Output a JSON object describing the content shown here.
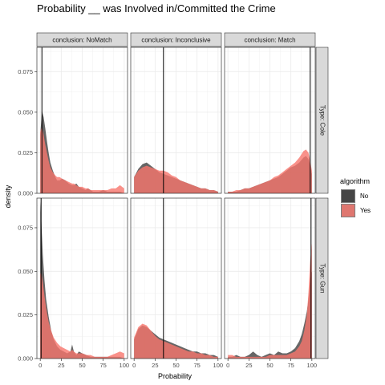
{
  "chart_data": {
    "type": "area",
    "title": "Probability __ was Involved in/Committed the Crime",
    "xlabel": "Probability",
    "ylabel": "density",
    "columns": [
      "conclusion: NoMatch",
      "conclusion: Inconclusive",
      "conclusion: Match"
    ],
    "rows": [
      {
        "label": "Type: Cole",
        "ylim": [
          0,
          0.09
        ],
        "yticks": [
          "0.000",
          "0.025",
          "0.050",
          "0.075"
        ],
        "ytick_values": [
          0,
          0.025,
          0.05,
          0.075
        ]
      },
      {
        "label": "Type: Gun",
        "ylim": [
          0,
          0.092
        ],
        "yticks": [
          "0.000",
          "0.025",
          "0.050",
          "0.075"
        ],
        "ytick_values": [
          0,
          0.025,
          0.05,
          0.075
        ]
      }
    ],
    "xlim": [
      -4,
      104
    ],
    "xticks": [
      "0",
      "25",
      "50",
      "75",
      "100"
    ],
    "xtick_values": [
      0,
      25,
      50,
      75,
      100
    ],
    "grid": true,
    "legend_position": "right",
    "legend": {
      "title": "algorithm",
      "entries": [
        {
          "label": "No",
          "color": "#333333",
          "opacity": 0.75
        },
        {
          "label": "Yes",
          "color": "#F8766D",
          "opacity": 0.8
        }
      ]
    },
    "panels": [
      {
        "row": 0,
        "col": 0,
        "vline": 2,
        "series": {
          "No": {
            "x": [
              0,
              2,
              4,
              6,
              8,
              10,
              12,
              15,
              18,
              20,
              23,
              26,
              30,
              34,
              38,
              40,
              43,
              46,
              50,
              54,
              57,
              60,
              63,
              66,
              70,
              75,
              80,
              85,
              90,
              95,
              100
            ],
            "y": [
              0.036,
              0.051,
              0.047,
              0.04,
              0.032,
              0.025,
              0.019,
              0.014,
              0.01,
              0.008,
              0.008,
              0.009,
              0.008,
              0.006,
              0.005,
              0.005,
              0.006,
              0.004,
              0.003,
              0.002,
              0.003,
              0.002,
              0.001,
              0.001,
              0.001,
              0.002,
              0.001,
              0.001,
              0.001,
              0.001,
              0.0
            ]
          },
          "Yes": {
            "x": [
              0,
              2,
              4,
              6,
              8,
              10,
              12,
              15,
              18,
              20,
              23,
              26,
              30,
              34,
              38,
              40,
              43,
              46,
              50,
              54,
              57,
              60,
              63,
              66,
              70,
              75,
              80,
              85,
              90,
              95,
              100
            ],
            "y": [
              0.038,
              0.041,
              0.036,
              0.03,
              0.025,
              0.02,
              0.016,
              0.013,
              0.011,
              0.01,
              0.01,
              0.009,
              0.008,
              0.007,
              0.006,
              0.006,
              0.005,
              0.004,
              0.004,
              0.003,
              0.003,
              0.002,
              0.002,
              0.002,
              0.002,
              0.002,
              0.002,
              0.003,
              0.003,
              0.005,
              0.003
            ]
          }
        }
      },
      {
        "row": 0,
        "col": 1,
        "vline": 35,
        "series": {
          "No": {
            "x": [
              0,
              5,
              10,
              15,
              20,
              25,
              30,
              35,
              40,
              45,
              50,
              55,
              60,
              65,
              70,
              75,
              80,
              85,
              90,
              95,
              100
            ],
            "y": [
              0.01,
              0.015,
              0.018,
              0.019,
              0.017,
              0.015,
              0.013,
              0.012,
              0.011,
              0.01,
              0.009,
              0.008,
              0.007,
              0.006,
              0.005,
              0.004,
              0.003,
              0.003,
              0.002,
              0.002,
              0.001
            ]
          },
          "Yes": {
            "x": [
              0,
              5,
              10,
              15,
              20,
              25,
              30,
              35,
              40,
              45,
              50,
              55,
              60,
              65,
              70,
              75,
              80,
              85,
              90,
              95,
              100
            ],
            "y": [
              0.01,
              0.014,
              0.016,
              0.017,
              0.016,
              0.015,
              0.014,
              0.014,
              0.013,
              0.011,
              0.01,
              0.008,
              0.007,
              0.006,
              0.005,
              0.004,
              0.003,
              0.003,
              0.002,
              0.002,
              0.001
            ]
          }
        }
      },
      {
        "row": 0,
        "col": 2,
        "vline": 98,
        "series": {
          "No": {
            "x": [
              0,
              5,
              10,
              15,
              20,
              25,
              30,
              35,
              40,
              45,
              50,
              55,
              60,
              65,
              70,
              75,
              80,
              85,
              90,
              93,
              96,
              98,
              100
            ],
            "y": [
              0.001,
              0.001,
              0.001,
              0.002,
              0.003,
              0.003,
              0.004,
              0.005,
              0.006,
              0.007,
              0.008,
              0.009,
              0.01,
              0.012,
              0.014,
              0.016,
              0.017,
              0.019,
              0.022,
              0.023,
              0.021,
              0.017,
              0.012
            ]
          },
          "Yes": {
            "x": [
              0,
              5,
              10,
              15,
              20,
              25,
              30,
              35,
              40,
              45,
              50,
              55,
              60,
              65,
              70,
              75,
              80,
              85,
              90,
              93,
              96,
              98,
              100
            ],
            "y": [
              0.001,
              0.001,
              0.002,
              0.002,
              0.003,
              0.003,
              0.004,
              0.005,
              0.006,
              0.007,
              0.008,
              0.01,
              0.011,
              0.013,
              0.015,
              0.017,
              0.019,
              0.022,
              0.026,
              0.027,
              0.025,
              0.02,
              0.014
            ]
          }
        }
      },
      {
        "row": 1,
        "col": 0,
        "vline": 1,
        "series": {
          "No": {
            "x": [
              0,
              1,
              3,
              5,
              7,
              10,
              13,
              16,
              20,
              24,
              28,
              32,
              36,
              38,
              40,
              43,
              46,
              50,
              55,
              60,
              65,
              70,
              75,
              80,
              85,
              90,
              95,
              100
            ],
            "y": [
              0.09,
              0.082,
              0.06,
              0.045,
              0.034,
              0.024,
              0.016,
              0.011,
              0.007,
              0.005,
              0.004,
              0.003,
              0.004,
              0.008,
              0.004,
              0.002,
              0.004,
              0.003,
              0.002,
              0.001,
              0.001,
              0.001,
              0.001,
              0.001,
              0.001,
              0.001,
              0.001,
              0.0
            ]
          },
          "Yes": {
            "x": [
              0,
              1,
              3,
              5,
              7,
              10,
              13,
              16,
              20,
              24,
              28,
              32,
              36,
              38,
              40,
              43,
              46,
              50,
              55,
              60,
              65,
              70,
              75,
              80,
              85,
              90,
              95,
              100
            ],
            "y": [
              0.048,
              0.05,
              0.044,
              0.036,
              0.029,
              0.021,
              0.016,
              0.012,
              0.009,
              0.007,
              0.006,
              0.005,
              0.004,
              0.005,
              0.004,
              0.003,
              0.003,
              0.003,
              0.002,
              0.002,
              0.001,
              0.001,
              0.001,
              0.001,
              0.002,
              0.003,
              0.004,
              0.003
            ]
          }
        }
      },
      {
        "row": 1,
        "col": 1,
        "vline": 35,
        "series": {
          "No": {
            "x": [
              0,
              5,
              10,
              15,
              20,
              25,
              30,
              35,
              40,
              45,
              50,
              55,
              60,
              65,
              70,
              75,
              80,
              85,
              90,
              95,
              100
            ],
            "y": [
              0.011,
              0.017,
              0.019,
              0.018,
              0.016,
              0.014,
              0.012,
              0.011,
              0.01,
              0.009,
              0.008,
              0.007,
              0.006,
              0.005,
              0.004,
              0.004,
              0.003,
              0.003,
              0.002,
              0.002,
              0.001
            ]
          },
          "Yes": {
            "x": [
              0,
              5,
              10,
              15,
              20,
              25,
              30,
              35,
              40,
              45,
              50,
              55,
              60,
              65,
              70,
              75,
              80,
              85,
              90,
              95,
              100
            ],
            "y": [
              0.012,
              0.018,
              0.02,
              0.019,
              0.016,
              0.013,
              0.011,
              0.01,
              0.009,
              0.008,
              0.007,
              0.006,
              0.005,
              0.004,
              0.004,
              0.003,
              0.003,
              0.002,
              0.002,
              0.001,
              0.001
            ]
          }
        }
      },
      {
        "row": 1,
        "col": 2,
        "vline": 99,
        "series": {
          "No": {
            "x": [
              0,
              5,
              10,
              15,
              20,
              25,
              30,
              35,
              40,
              45,
              50,
              55,
              60,
              65,
              70,
              75,
              80,
              85,
              88,
              91,
              94,
              96,
              98,
              100
            ],
            "y": [
              0.001,
              0.001,
              0.002,
              0.001,
              0.001,
              0.002,
              0.004,
              0.002,
              0.001,
              0.002,
              0.003,
              0.002,
              0.004,
              0.003,
              0.003,
              0.004,
              0.006,
              0.01,
              0.014,
              0.02,
              0.027,
              0.034,
              0.046,
              0.05
            ]
          },
          "Yes": {
            "x": [
              0,
              5,
              10,
              15,
              20,
              25,
              30,
              35,
              40,
              45,
              50,
              55,
              60,
              65,
              70,
              75,
              80,
              85,
              88,
              91,
              94,
              96,
              98,
              100
            ],
            "y": [
              0.002,
              0.002,
              0.001,
              0.001,
              0.001,
              0.001,
              0.001,
              0.001,
              0.001,
              0.001,
              0.002,
              0.002,
              0.002,
              0.002,
              0.002,
              0.003,
              0.004,
              0.007,
              0.01,
              0.016,
              0.025,
              0.038,
              0.056,
              0.066
            ]
          }
        }
      }
    ]
  }
}
